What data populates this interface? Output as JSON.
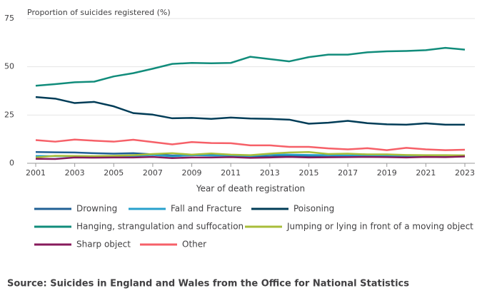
{
  "chart_data": {
    "type": "line",
    "y_label": "Proportion of suicides registered (%)",
    "x_label": "Year of death registration",
    "source": "Source: Suicides in England and Wales from the Office for National Statistics",
    "x": [
      2001,
      2002,
      2003,
      2004,
      2005,
      2006,
      2007,
      2008,
      2009,
      2010,
      2011,
      2012,
      2013,
      2014,
      2015,
      2016,
      2017,
      2018,
      2019,
      2020,
      2021,
      2022,
      2023
    ],
    "xlim": [
      2001,
      2023
    ],
    "xticks": [
      2001,
      2003,
      2005,
      2007,
      2009,
      2011,
      2013,
      2015,
      2017,
      2019,
      2021,
      2023
    ],
    "ylim": [
      0,
      75
    ],
    "yticks": [
      0,
      25,
      50,
      75
    ],
    "grid": true,
    "series": [
      {
        "name": "Drowning",
        "color": "#206095",
        "values": [
          5.8,
          5.7,
          5.6,
          5.2,
          5,
          5.2,
          4.6,
          4,
          4.1,
          4.4,
          3.9,
          3.5,
          3.5,
          3.9,
          3.6,
          3.3,
          3.5,
          3.3,
          3.5,
          3.5,
          3.6,
          3.5,
          3.8
        ]
      },
      {
        "name": "Fall and Fracture",
        "color": "#27a0cc",
        "values": [
          3.8,
          3.7,
          3.7,
          3.6,
          3.7,
          3.8,
          4.3,
          3.6,
          4.2,
          4,
          4,
          3.8,
          4.5,
          4.5,
          4.3,
          4.2,
          4,
          4.2,
          4,
          4,
          3.8,
          3.8,
          3.9
        ]
      },
      {
        "name": "Poisoning",
        "color": "#003c57",
        "values": [
          34.3,
          33.5,
          31.2,
          31.8,
          29.5,
          26,
          25.2,
          23.3,
          23.5,
          23,
          23.7,
          23.2,
          23,
          22.6,
          20.5,
          21,
          22,
          20.8,
          20.2,
          20,
          20.7,
          20,
          20
        ]
      },
      {
        "name": "Hanging, strangulation and suffocation",
        "color": "#118c7b",
        "values": [
          40.2,
          41,
          42,
          42.3,
          45,
          46.7,
          49,
          51.5,
          52,
          51.8,
          52,
          55.2,
          54,
          52.8,
          55,
          56.3,
          56.3,
          57.5,
          58,
          58.2,
          58.6,
          59.8,
          58.9
        ]
      },
      {
        "name": "Jumping or lying in front of a moving object",
        "color": "#a8bd3a",
        "values": [
          3,
          3.9,
          3.8,
          3.7,
          3.9,
          4.2,
          4.8,
          5.2,
          4.5,
          5.1,
          4.5,
          4.2,
          5,
          5.6,
          5.8,
          4.8,
          5,
          4.6,
          4.6,
          4.3,
          4.2,
          4.2,
          4.1
        ]
      },
      {
        "name": "Sharp object",
        "color": "#871a5b",
        "values": [
          2.3,
          2.2,
          3,
          2.9,
          3,
          3,
          3.3,
          2.7,
          3,
          3,
          3.2,
          2.8,
          3,
          3.3,
          3,
          3.1,
          3.2,
          3.3,
          3.2,
          3,
          3.3,
          3.2,
          3.5
        ]
      },
      {
        "name": "Other",
        "color": "#f66068",
        "values": [
          12,
          11.2,
          12.3,
          11.7,
          11.2,
          12.2,
          11,
          9.8,
          11,
          10.5,
          10.4,
          9.3,
          9.3,
          8.5,
          8.5,
          7.7,
          7.2,
          7.8,
          6.8,
          8,
          7.2,
          6.8,
          7
        ]
      }
    ]
  }
}
